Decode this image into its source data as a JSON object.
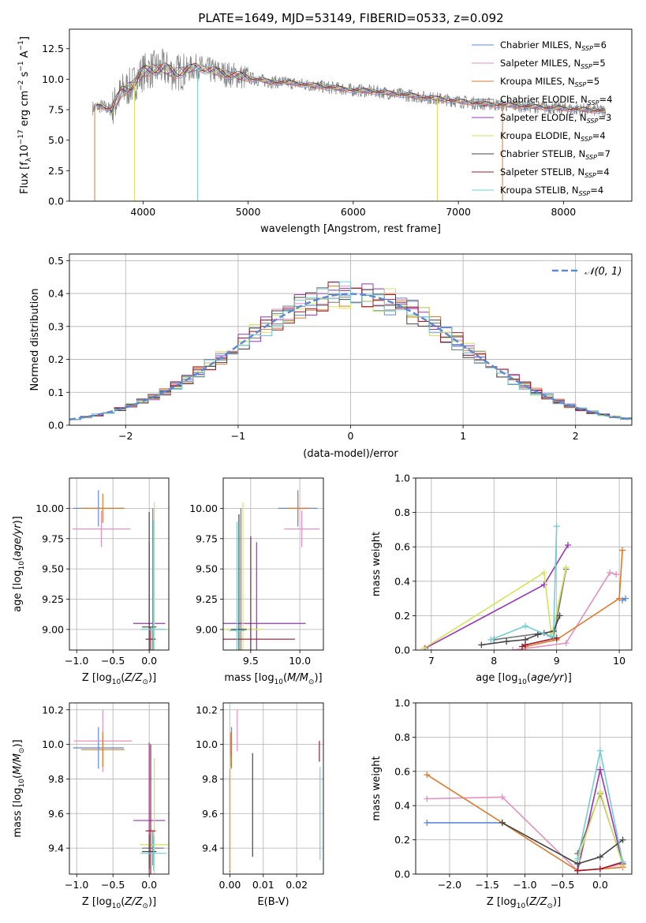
{
  "figure": {
    "title": "PLATE=1649, MJD=53149, FIBERID=0533, z=0.092"
  },
  "colors": {
    "Chabrier MILES": "#5b8bd6",
    "Salpeter MILES": "#e58fbf",
    "Kroupa MILES": "#e07a2a",
    "Chabrier ELODIE": "#777777",
    "Salpeter ELODIE": "#9b34b7",
    "Kroupa ELODIE": "#d6e35a",
    "Chabrier STELIB": "#444444",
    "Salpeter STELIB": "#9c1c2e",
    "Kroupa STELIB": "#72cfd6",
    "normal": "#5b8bd6"
  },
  "chart_data": [
    {
      "id": "spectrum",
      "type": "line",
      "xlabel": "wavelength [Angstrom, rest frame]",
      "ylabel": "Flux [f_λ10^-17 erg cm^-2 s^-1 A^-1]",
      "xlim": [
        3300,
        8650
      ],
      "ylim": [
        0,
        14.1
      ],
      "xticks": [
        4000,
        5000,
        6000,
        7000,
        8000
      ],
      "yticks": [
        0.0,
        2.5,
        5.0,
        7.5,
        10.0,
        12.5
      ],
      "legend_position": "top-right",
      "series": [
        {
          "name": "Chabrier MILES, N_SSP=6",
          "label": "Chabrier MILES, N",
          "sub": "SSP",
          "n": "=6",
          "key": "Chabrier MILES"
        },
        {
          "name": "Salpeter MILES, N_SSP=5",
          "label": "Salpeter MILES, N",
          "sub": "SSP",
          "n": "=5",
          "key": "Salpeter MILES"
        },
        {
          "name": "Kroupa MILES, N_SSP=5",
          "label": "Kroupa MILES, N",
          "sub": "SSP",
          "n": "=5",
          "key": "Kroupa MILES"
        },
        {
          "name": "Chabrier ELODIE, N_SSP=4",
          "label": "Chabrier ELODIE, N",
          "sub": "SSP",
          "n": "=4",
          "key": "Chabrier ELODIE"
        },
        {
          "name": "Salpeter ELODIE, N_SSP=3",
          "label": "Salpeter ELODIE, N",
          "sub": "SSP",
          "n": "=3",
          "key": "Salpeter ELODIE"
        },
        {
          "name": "Kroupa ELODIE, N_SSP=4",
          "label": "Kroupa ELODIE, N",
          "sub": "SSP",
          "n": "=4",
          "key": "Kroupa ELODIE"
        },
        {
          "name": "Chabrier STELIB, N_SSP=7",
          "label": "Chabrier STELIB, N",
          "sub": "SSP",
          "n": "=7",
          "key": "Chabrier STELIB"
        },
        {
          "name": "Salpeter STELIB, N_SSP=4",
          "label": "Salpeter STELIB, N",
          "sub": "SSP",
          "n": "=4",
          "key": "Salpeter STELIB"
        },
        {
          "name": "Kroupa STELIB, N_SSP=4",
          "label": "Kroupa STELIB, N",
          "sub": "SSP",
          "n": "=4",
          "key": "Kroupa STELIB"
        }
      ],
      "continuum": {
        "x": [
          3500,
          3600,
          3700,
          3800,
          3900,
          4000,
          4100,
          4200,
          4300,
          4400,
          4500,
          4600,
          4700,
          4800,
          4900,
          5000,
          5200,
          5400,
          5600,
          5800,
          6000,
          6200,
          6400,
          6600,
          6800,
          7000,
          7200,
          7400,
          7600,
          7800,
          8000,
          8200,
          8400
        ],
        "y": [
          7.6,
          7.8,
          7.5,
          9.0,
          9.5,
          10.6,
          10.8,
          10.9,
          10.5,
          10.7,
          11.0,
          10.8,
          10.6,
          10.4,
          10.3,
          10.1,
          9.8,
          9.7,
          9.5,
          9.3,
          9.1,
          9.0,
          8.8,
          8.6,
          8.4,
          8.2,
          8.0,
          7.9,
          7.8,
          7.7,
          7.6,
          7.5,
          7.4
        ]
      }
    },
    {
      "id": "residuals",
      "type": "line",
      "xlabel": "(data-model)/error",
      "ylabel": "Normed distribution",
      "xlim": [
        -2.5,
        2.5
      ],
      "ylim": [
        0,
        0.52
      ],
      "xticks": [
        -2,
        -1,
        0,
        1,
        2
      ],
      "yticks": [
        0.0,
        0.1,
        0.2,
        0.3,
        0.4,
        0.5
      ],
      "legend": "𝒩(0, 1)",
      "legend_position": "top-right",
      "bin_width": 0.1
    },
    {
      "id": "age-vs-Z",
      "type": "scatter",
      "xlabel": "Z [log10(Z/Z⊙)]",
      "ylabel": "age  [log10(age/yr)]",
      "xlim": [
        -1.1,
        0.27
      ],
      "ylim": [
        8.83,
        10.25
      ],
      "xticks": [
        -1.0,
        -0.5,
        0.0
      ],
      "yticks": [
        9.0,
        9.25,
        9.5,
        9.75,
        10.0
      ],
      "points": [
        {
          "key": "Chabrier MILES",
          "x": -0.7,
          "y": 10.0,
          "xerr": 0.35,
          "yerr": 0.15
        },
        {
          "key": "Salpeter MILES",
          "x": -0.66,
          "y": 9.83,
          "xerr": 0.4,
          "yerr": 0.15
        },
        {
          "key": "Kroupa MILES",
          "x": -0.64,
          "y": 10.0,
          "xerr": 0.3,
          "yerr": 0.12
        },
        {
          "key": "Chabrier ELODIE",
          "x": 0.05,
          "y": 9.0,
          "xerr": 0.15,
          "yerr": 1.0
        },
        {
          "key": "Salpeter ELODIE",
          "x": 0.0,
          "y": 9.05,
          "xerr": 0.22,
          "yerr": 0.67
        },
        {
          "key": "Kroupa ELODIE",
          "x": 0.07,
          "y": 9.0,
          "xerr": 0.2,
          "yerr": 1.05
        },
        {
          "key": "Chabrier STELIB",
          "x": 0.0,
          "y": 9.02,
          "xerr": 0.1,
          "yerr": 0.95
        },
        {
          "key": "Salpeter STELIB",
          "x": 0.02,
          "y": 8.92,
          "xerr": 0.07,
          "yerr": 0.1
        },
        {
          "key": "Kroupa STELIB",
          "x": 0.06,
          "y": 9.0,
          "xerr": 0.18,
          "yerr": 0.9
        }
      ]
    },
    {
      "id": "age-vs-mass",
      "type": "scatter",
      "xlabel": "mass [log10(M/M⊙)]",
      "ylabel": "",
      "xlim": [
        9.22,
        10.24
      ],
      "ylim": [
        8.83,
        10.25
      ],
      "xticks": [
        9.5,
        10.0
      ],
      "yticks": [
        9.0,
        9.25,
        9.5,
        9.75,
        10.0
      ],
      "points": [
        {
          "key": "Chabrier MILES",
          "x": 9.98,
          "y": 10.0,
          "xerr": 0.2,
          "yerr": 0.15
        },
        {
          "key": "Salpeter MILES",
          "x": 10.02,
          "y": 9.83,
          "xerr": 0.18,
          "yerr": 0.15
        },
        {
          "key": "Kroupa MILES",
          "x": 9.98,
          "y": 10.0,
          "xerr": 0.12,
          "yerr": 0.12
        },
        {
          "key": "Chabrier ELODIE",
          "x": 9.4,
          "y": 9.0,
          "xerr": 0.15,
          "yerr": 1.0
        },
        {
          "key": "Salpeter ELODIE",
          "x": 9.56,
          "y": 9.05,
          "xerr": 0.5,
          "yerr": 0.67
        },
        {
          "key": "Kroupa ELODIE",
          "x": 9.42,
          "y": 9.0,
          "xerr": 0.2,
          "yerr": 1.05
        },
        {
          "key": "Chabrier STELIB",
          "x": 9.38,
          "y": 9.0,
          "xerr": 0.08,
          "yerr": 0.95
        },
        {
          "key": "Salpeter STELIB",
          "x": 9.5,
          "y": 8.92,
          "xerr": 0.45,
          "yerr": 0.85
        },
        {
          "key": "Kroupa STELIB",
          "x": 9.36,
          "y": 8.99,
          "xerr": 0.08,
          "yerr": 0.9
        }
      ]
    },
    {
      "id": "mass-weight-vs-age",
      "type": "line",
      "xlabel": "age  [log10(age/yr)]",
      "ylabel": "mass weight",
      "xlim": [
        6.75,
        10.2
      ],
      "ylim": [
        0,
        1.0
      ],
      "xticks": [
        7,
        8,
        9,
        10
      ],
      "yticks": [
        0.0,
        0.2,
        0.4,
        0.6,
        0.8,
        1.0
      ],
      "series": [
        {
          "key": "Chabrier MILES",
          "x": [
            10.05,
            10.1
          ],
          "y": [
            0.29,
            0.3
          ]
        },
        {
          "key": "Salpeter MILES",
          "x": [
            8.3,
            9.15,
            9.85,
            9.95
          ],
          "y": [
            0.0,
            0.04,
            0.45,
            0.44
          ]
        },
        {
          "key": "Kroupa MILES",
          "x": [
            8.5,
            9.0,
            10.0,
            10.05
          ],
          "y": [
            0.02,
            0.06,
            0.3,
            0.58
          ]
        },
        {
          "key": "Chabrier ELODIE",
          "x": [
            8.0,
            8.8,
            8.95,
            9.15
          ],
          "y": [
            0.06,
            0.1,
            0.07,
            0.47
          ]
        },
        {
          "key": "Salpeter ELODIE",
          "x": [
            6.9,
            8.8,
            9.18
          ],
          "y": [
            0.01,
            0.38,
            0.61
          ]
        },
        {
          "key": "Kroupa ELODIE",
          "x": [
            6.88,
            8.8,
            8.92,
            9.15
          ],
          "y": [
            0.01,
            0.45,
            0.08,
            0.48
          ]
        },
        {
          "key": "Chabrier STELIB",
          "x": [
            7.8,
            8.2,
            8.5,
            8.7,
            8.95,
            9.05
          ],
          "y": [
            0.03,
            0.05,
            0.06,
            0.09,
            0.11,
            0.2
          ]
        },
        {
          "key": "Salpeter STELIB",
          "x": [
            8.45,
            8.5,
            9.0
          ],
          "y": [
            0.02,
            0.03,
            0.07
          ]
        },
        {
          "key": "Kroupa STELIB",
          "x": [
            7.95,
            8.5,
            8.9,
            8.95,
            9.0
          ],
          "y": [
            0.06,
            0.14,
            0.08,
            0.08,
            0.72
          ]
        }
      ]
    },
    {
      "id": "mass-vs-Z",
      "type": "scatter",
      "xlabel": "Z [log10(Z/Z⊙)]",
      "ylabel": "mass [log10(M/M⊙)]",
      "xlim": [
        -1.1,
        0.27
      ],
      "ylim": [
        9.25,
        10.24
      ],
      "xticks": [
        -1.0,
        -0.5,
        0.0
      ],
      "yticks": [
        9.4,
        9.6,
        9.8,
        10.0,
        10.2
      ],
      "points": [
        {
          "key": "Chabrier MILES",
          "x": -0.7,
          "y": 9.98,
          "xerr": 0.35,
          "yerr": 0.12
        },
        {
          "key": "Salpeter MILES",
          "x": -0.64,
          "y": 10.02,
          "xerr": 0.4,
          "yerr": 0.18
        },
        {
          "key": "Kroupa MILES",
          "x": -0.64,
          "y": 9.97,
          "xerr": 0.3,
          "yerr": 0.1
        },
        {
          "key": "Chabrier ELODIE",
          "x": 0.05,
          "y": 9.4,
          "xerr": 0.15,
          "yerr": 0.1
        },
        {
          "key": "Salpeter ELODIE",
          "x": 0.0,
          "y": 9.56,
          "xerr": 0.22,
          "yerr": 0.45
        },
        {
          "key": "Kroupa ELODIE",
          "x": 0.07,
          "y": 9.42,
          "xerr": 0.2,
          "yerr": 0.5
        },
        {
          "key": "Chabrier STELIB",
          "x": 0.0,
          "y": 9.38,
          "xerr": 0.1,
          "yerr": 0.1
        },
        {
          "key": "Salpeter STELIB",
          "x": 0.02,
          "y": 9.5,
          "xerr": 0.07,
          "yerr": 0.5
        },
        {
          "key": "Kroupa STELIB",
          "x": 0.06,
          "y": 9.37,
          "xerr": 0.18,
          "yerr": 0.1
        }
      ]
    },
    {
      "id": "mass-vs-EBV",
      "type": "scatter",
      "xlabel": "E(B-V)",
      "ylabel": "",
      "xlim": [
        -0.002,
        0.028
      ],
      "ylim": [
        9.25,
        10.24
      ],
      "xticks": [
        0.0,
        0.01,
        0.02
      ],
      "yticks": [
        9.4,
        9.6,
        9.8,
        10.0,
        10.2
      ],
      "points": [
        {
          "key": "Chabrier MILES",
          "x": 0.0005,
          "y": 9.98,
          "yerr": 0.12
        },
        {
          "key": "Salpeter MILES",
          "x": 0.0022,
          "y": 10.08,
          "yerr": 0.12
        },
        {
          "key": "Kroupa MILES",
          "x": 0.0003,
          "y": 9.97,
          "yerr": 0.1
        },
        {
          "key": "Chabrier ELODIE",
          "x": 0.0,
          "y": 9.55,
          "yerr": 0.27
        },
        {
          "key": "Salpeter ELODIE",
          "x": 0.0,
          "y": 9.56,
          "yerr": 0.3
        },
        {
          "key": "Kroupa ELODIE",
          "x": 0.0001,
          "y": 9.6,
          "yerr": 0.33
        },
        {
          "key": "Chabrier STELIB",
          "x": 0.0068,
          "y": 9.65,
          "yerr": 0.3
        },
        {
          "key": "Salpeter STELIB",
          "x": 0.0268,
          "y": 9.96,
          "yerr": 0.06
        },
        {
          "key": "Kroupa STELIB",
          "x": 0.027,
          "y": 9.6,
          "yerr": 0.27
        }
      ]
    },
    {
      "id": "mass-weight-vs-Z",
      "type": "line",
      "xlabel": "Z [log10(Z/Z⊙)]",
      "ylabel": "mass weight",
      "xlim": [
        -2.45,
        0.42
      ],
      "ylim": [
        0,
        1.0
      ],
      "xticks": [
        -2.0,
        -1.5,
        -1.0,
        -0.5,
        0.0
      ],
      "yticks": [
        0.0,
        0.2,
        0.4,
        0.6,
        0.8,
        1.0
      ],
      "series": [
        {
          "key": "Chabrier MILES",
          "x": [
            -2.3,
            -1.3
          ],
          "y": [
            0.3,
            0.3
          ]
        },
        {
          "key": "Salpeter MILES",
          "x": [
            -2.3,
            -1.3,
            -0.3,
            0.0,
            0.3
          ],
          "y": [
            0.44,
            0.45,
            0.02,
            0.03,
            0.06
          ]
        },
        {
          "key": "Kroupa MILES",
          "x": [
            -2.3,
            -1.3,
            -0.3,
            0.3
          ],
          "y": [
            0.58,
            0.3,
            0.02,
            0.04
          ]
        },
        {
          "key": "Chabrier ELODIE",
          "x": [
            -0.3,
            0.0,
            0.3
          ],
          "y": [
            0.12,
            0.47,
            0.06
          ]
        },
        {
          "key": "Salpeter ELODIE",
          "x": [
            -0.3,
            0.0,
            0.3
          ],
          "y": [
            0.02,
            0.61,
            0.06
          ]
        },
        {
          "key": "Kroupa ELODIE",
          "x": [
            -0.3,
            0.0,
            0.3
          ],
          "y": [
            0.08,
            0.48,
            0.05
          ]
        },
        {
          "key": "Chabrier STELIB",
          "x": [
            -1.3,
            -0.3,
            0.0,
            0.3
          ],
          "y": [
            0.3,
            0.06,
            0.1,
            0.2
          ]
        },
        {
          "key": "Salpeter STELIB",
          "x": [
            -0.3,
            0.0,
            0.3
          ],
          "y": [
            0.02,
            0.03,
            0.07
          ]
        },
        {
          "key": "Kroupa STELIB",
          "x": [
            -0.3,
            0.0,
            0.3
          ],
          "y": [
            0.09,
            0.72,
            0.07
          ]
        }
      ]
    }
  ]
}
